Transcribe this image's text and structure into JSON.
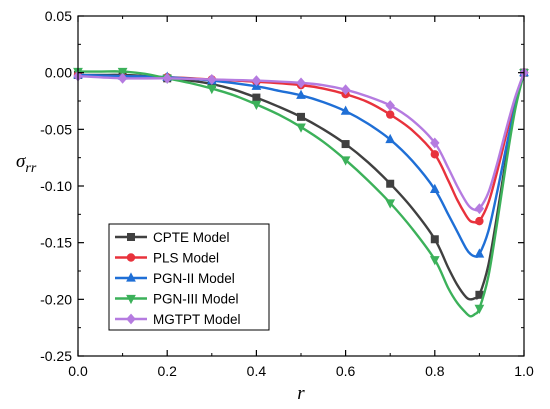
{
  "chart_data": {
    "type": "line",
    "title": "",
    "xlabel": "r",
    "ylabel": "σ",
    "ylabel_sub": "rr",
    "xlim": [
      0.0,
      1.0
    ],
    "ylim": [
      -0.25,
      0.05
    ],
    "x_ticks": [
      0.0,
      0.2,
      0.4,
      0.6,
      0.8,
      1.0
    ],
    "x_tick_labels": [
      "0.0",
      "0.2",
      "0.4",
      "0.6",
      "0.8",
      "1.0"
    ],
    "y_ticks": [
      0.05,
      0.0,
      -0.05,
      -0.1,
      -0.15,
      -0.2,
      -0.25
    ],
    "y_tick_labels": [
      "0.05",
      "0.00",
      "-0.05",
      "-0.10",
      "-0.15",
      "-0.20",
      "-0.25"
    ],
    "grid": false,
    "legend_position": "bottom-left",
    "series": [
      {
        "name": "CPTE Model",
        "color": "#404040",
        "marker": "square",
        "x": [
          0.0,
          0.1,
          0.2,
          0.3,
          0.4,
          0.5,
          0.6,
          0.7,
          0.8,
          0.9,
          1.0
        ],
        "y": [
          -0.002,
          -0.002,
          -0.005,
          -0.01,
          -0.022,
          -0.039,
          -0.063,
          -0.098,
          -0.147,
          -0.196,
          0.0
        ],
        "curve_x": [
          0.0,
          0.05,
          0.1,
          0.15,
          0.2,
          0.25,
          0.3,
          0.35,
          0.4,
          0.45,
          0.5,
          0.55,
          0.6,
          0.65,
          0.7,
          0.75,
          0.8,
          0.83,
          0.85,
          0.87,
          0.88,
          0.89,
          0.9,
          0.92,
          0.94,
          0.96,
          0.98,
          1.0
        ],
        "curve_y": [
          -0.002,
          -0.002,
          -0.002,
          -0.003,
          -0.005,
          -0.007,
          -0.01,
          -0.015,
          -0.022,
          -0.03,
          -0.039,
          -0.05,
          -0.063,
          -0.079,
          -0.098,
          -0.12,
          -0.147,
          -0.172,
          -0.187,
          -0.198,
          -0.2,
          -0.199,
          -0.196,
          -0.17,
          -0.125,
          -0.075,
          -0.03,
          0.0
        ]
      },
      {
        "name": "PLS Model",
        "color": "#e8323c",
        "marker": "circle",
        "x": [
          0.0,
          0.1,
          0.2,
          0.3,
          0.4,
          0.5,
          0.6,
          0.7,
          0.8,
          0.9,
          1.0
        ],
        "y": [
          -0.002,
          -0.004,
          -0.004,
          -0.006,
          -0.008,
          -0.011,
          -0.019,
          -0.037,
          -0.072,
          -0.131,
          0.0
        ],
        "curve_x": [
          0.0,
          0.1,
          0.2,
          0.3,
          0.4,
          0.5,
          0.55,
          0.6,
          0.65,
          0.7,
          0.75,
          0.8,
          0.83,
          0.85,
          0.87,
          0.88,
          0.89,
          0.9,
          0.92,
          0.94,
          0.96,
          0.98,
          1.0
        ],
        "curve_y": [
          -0.002,
          -0.004,
          -0.004,
          -0.006,
          -0.008,
          -0.011,
          -0.014,
          -0.019,
          -0.026,
          -0.037,
          -0.051,
          -0.072,
          -0.095,
          -0.112,
          -0.126,
          -0.131,
          -0.132,
          -0.131,
          -0.115,
          -0.087,
          -0.055,
          -0.024,
          0.0
        ]
      },
      {
        "name": "PGN-II Model",
        "color": "#1f6fd6",
        "marker": "triangle-up",
        "x": [
          0.0,
          0.1,
          0.2,
          0.3,
          0.4,
          0.5,
          0.6,
          0.7,
          0.8,
          0.9,
          1.0
        ],
        "y": [
          -0.002,
          -0.003,
          -0.004,
          -0.007,
          -0.012,
          -0.02,
          -0.034,
          -0.059,
          -0.103,
          -0.16,
          0.0
        ],
        "curve_x": [
          0.0,
          0.1,
          0.2,
          0.3,
          0.4,
          0.45,
          0.5,
          0.55,
          0.6,
          0.65,
          0.7,
          0.75,
          0.8,
          0.83,
          0.85,
          0.87,
          0.88,
          0.89,
          0.9,
          0.92,
          0.94,
          0.96,
          0.98,
          1.0
        ],
        "curve_y": [
          -0.002,
          -0.003,
          -0.004,
          -0.007,
          -0.012,
          -0.016,
          -0.02,
          -0.026,
          -0.034,
          -0.045,
          -0.059,
          -0.078,
          -0.103,
          -0.125,
          -0.14,
          -0.155,
          -0.16,
          -0.162,
          -0.16,
          -0.14,
          -0.105,
          -0.066,
          -0.03,
          0.0
        ]
      },
      {
        "name": "PGN-III Model",
        "color": "#3cb15a",
        "marker": "triangle-down",
        "x": [
          0.0,
          0.1,
          0.2,
          0.3,
          0.4,
          0.5,
          0.6,
          0.7,
          0.8,
          0.9,
          1.0
        ],
        "y": [
          0.001,
          0.001,
          -0.005,
          -0.014,
          -0.028,
          -0.048,
          -0.077,
          -0.115,
          -0.165,
          -0.208,
          0.0
        ],
        "curve_x": [
          0.0,
          0.05,
          0.1,
          0.15,
          0.2,
          0.25,
          0.3,
          0.35,
          0.4,
          0.45,
          0.5,
          0.55,
          0.6,
          0.65,
          0.7,
          0.75,
          0.8,
          0.83,
          0.85,
          0.87,
          0.88,
          0.89,
          0.9,
          0.92,
          0.94,
          0.96,
          0.98,
          1.0
        ],
        "curve_y": [
          0.001,
          0.001,
          0.001,
          -0.001,
          -0.005,
          -0.009,
          -0.014,
          -0.02,
          -0.028,
          -0.037,
          -0.048,
          -0.061,
          -0.077,
          -0.095,
          -0.115,
          -0.138,
          -0.165,
          -0.19,
          -0.203,
          -0.212,
          -0.215,
          -0.213,
          -0.208,
          -0.18,
          -0.132,
          -0.08,
          -0.033,
          0.0
        ]
      },
      {
        "name": "MGTPT Model",
        "color": "#b57be0",
        "marker": "diamond",
        "x": [
          0.0,
          0.1,
          0.2,
          0.3,
          0.4,
          0.5,
          0.6,
          0.7,
          0.8,
          0.9,
          1.0
        ],
        "y": [
          -0.003,
          -0.005,
          -0.005,
          -0.006,
          -0.007,
          -0.009,
          -0.015,
          -0.029,
          -0.062,
          -0.12,
          0.0
        ],
        "curve_x": [
          0.0,
          0.1,
          0.2,
          0.3,
          0.4,
          0.5,
          0.55,
          0.6,
          0.65,
          0.7,
          0.75,
          0.8,
          0.83,
          0.85,
          0.87,
          0.88,
          0.89,
          0.9,
          0.92,
          0.94,
          0.96,
          0.98,
          1.0
        ],
        "curve_y": [
          -0.003,
          -0.005,
          -0.005,
          -0.006,
          -0.007,
          -0.009,
          -0.011,
          -0.015,
          -0.021,
          -0.029,
          -0.042,
          -0.062,
          -0.084,
          -0.1,
          -0.114,
          -0.119,
          -0.121,
          -0.12,
          -0.106,
          -0.08,
          -0.05,
          -0.022,
          0.0
        ]
      }
    ]
  }
}
